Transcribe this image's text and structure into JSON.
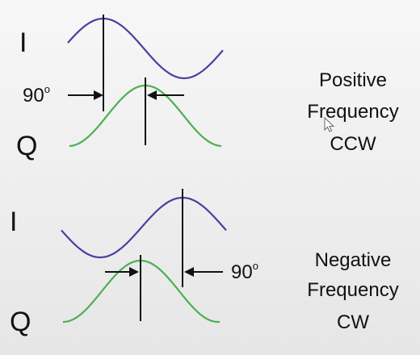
{
  "colors": {
    "i_wave": "#4a3f9e",
    "q_wave": "#4caf50",
    "marker": "#111111",
    "background": "#ececec"
  },
  "positive": {
    "i_label": "I",
    "q_label": "Q",
    "phase_label": "90",
    "degree_mark": "o",
    "caption": [
      "Positive",
      "Frequency",
      "CCW"
    ]
  },
  "negative": {
    "i_label": "I",
    "q_label": "Q",
    "phase_label": "90",
    "degree_mark": "o",
    "caption": [
      "Negative",
      "Frequency",
      "CW"
    ]
  },
  "icons": {
    "pointer": "mouse-pointer-icon"
  }
}
